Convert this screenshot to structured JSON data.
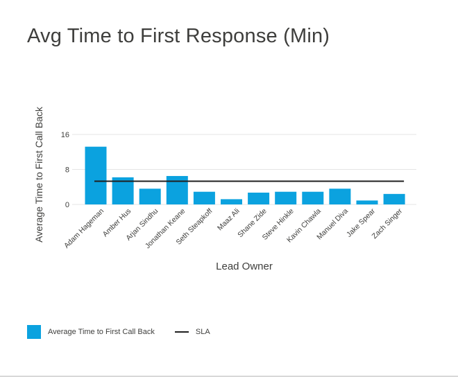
{
  "title": "Avg Time to First Response (Min)",
  "colors": {
    "bar": "#0ba2df",
    "sla_line": "#1f1f1f",
    "grid": "#e4e4e4",
    "text": "#3e3e3c"
  },
  "chart_data": {
    "type": "bar",
    "title": "Avg Time to First Response (Min)",
    "xlabel": "Lead Owner",
    "ylabel": "Average Time to First Call Back",
    "ylim": [
      0,
      16
    ],
    "yticks": [
      0,
      8,
      16
    ],
    "grid": true,
    "legend_position": "bottom-left",
    "categories": [
      "Adam Hageman",
      "Amber Hus",
      "Arjan Sindhu",
      "Jonathan Keane",
      "Seth Steapkoff",
      "Maaz Ali",
      "Shane Zide",
      "Steve Hinkle",
      "Kavin Chawla",
      "Manuel Diva",
      "Jake Spear",
      "Zach Singer"
    ],
    "series": [
      {
        "name": "Average Time to First Call Back",
        "type": "bar",
        "values": [
          13.2,
          6.2,
          3.6,
          6.5,
          2.9,
          1.2,
          2.7,
          2.9,
          2.9,
          3.6,
          0.9,
          2.4
        ]
      },
      {
        "name": "SLA",
        "type": "line",
        "values": [
          5.3,
          5.3,
          5.3,
          5.3,
          5.3,
          5.3,
          5.3,
          5.3,
          5.3,
          5.3,
          5.3,
          5.3
        ]
      }
    ]
  },
  "legend": {
    "bar_label": "Average Time to First Call Back",
    "line_label": "SLA"
  }
}
